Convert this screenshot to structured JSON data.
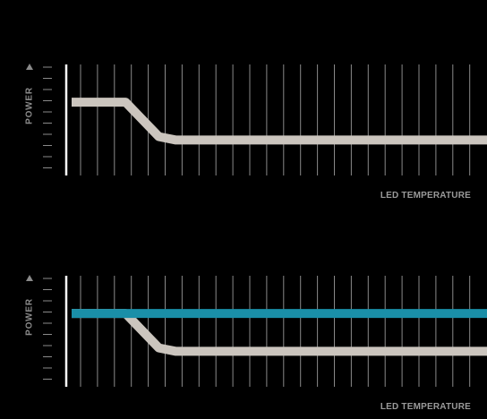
{
  "colors": {
    "background": "#000000",
    "default_curve": "#cbc5be",
    "constant_curve": "#1a8fa8",
    "grid": "#8a8a8a",
    "axis": "#ffffff",
    "label": "#9a9a9a"
  },
  "chart_data": [
    {
      "type": "line",
      "ylabel": "POWER",
      "xlabel": "LED TEMPERATURE",
      "y_axis_arrow": "triangle-up",
      "x_range": [
        0,
        1
      ],
      "y_range": [
        0,
        1
      ],
      "series": [
        {
          "color": "#cbc5be",
          "points": [
            [
              0.0,
              0.66
            ],
            [
              0.13,
              0.66
            ],
            [
              0.21,
              0.35
            ],
            [
              0.25,
              0.32
            ],
            [
              1.0,
              0.32
            ]
          ]
        }
      ]
    },
    {
      "type": "line",
      "ylabel": "POWER",
      "xlabel": "LED TEMPERATURE",
      "y_axis_arrow": "triangle-up",
      "x_range": [
        0,
        1
      ],
      "y_range": [
        0,
        1
      ],
      "series": [
        {
          "color": "#cbc5be",
          "points": [
            [
              0.0,
              0.66
            ],
            [
              0.13,
              0.66
            ],
            [
              0.21,
              0.35
            ],
            [
              0.25,
              0.32
            ],
            [
              1.0,
              0.32
            ]
          ]
        },
        {
          "color": "#1a8fa8",
          "points": [
            [
              0.0,
              0.66
            ],
            [
              1.0,
              0.66
            ]
          ]
        }
      ]
    }
  ]
}
